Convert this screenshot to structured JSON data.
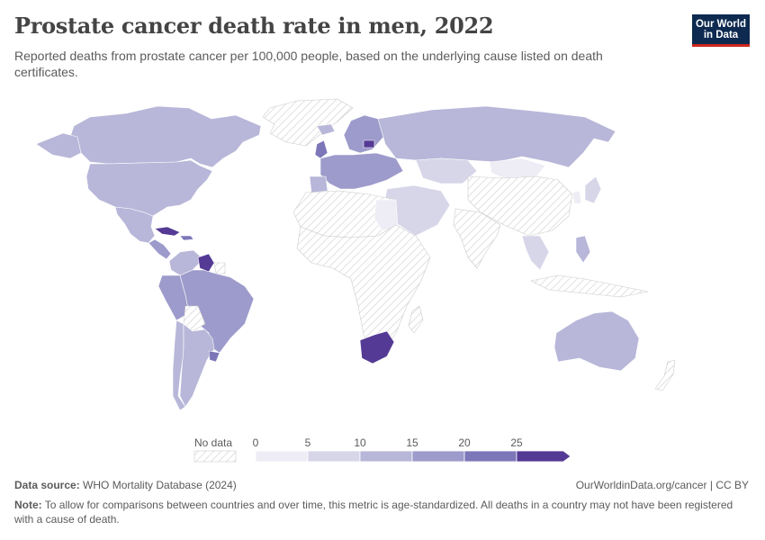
{
  "header": {
    "title": "Prostate cancer death rate in men, 2022",
    "subtitle": "Reported deaths from prostate cancer per 100,000 people, based on the underlying cause listed on death certificates."
  },
  "logo": {
    "line1": "Our World",
    "line2": "in Data"
  },
  "colors": {
    "no_data_stripe": "#d9d9d9",
    "bins": [
      "#eeedf5",
      "#d7d6e9",
      "#b8b7d9",
      "#9d9bcb",
      "#7d77b9",
      "#543a94"
    ],
    "border": "#ffffff"
  },
  "legend": {
    "no_data_label": "No data",
    "ticks": [
      "0",
      "5",
      "10",
      "15",
      "20",
      "25"
    ]
  },
  "map_data": {
    "metric": "Prostate cancer death rate per 100,000 (age-standardized)",
    "year": "2022",
    "regions": [
      {
        "name": "Canada",
        "bin": 2
      },
      {
        "name": "United States",
        "bin": 2
      },
      {
        "name": "Mexico",
        "bin": 2
      },
      {
        "name": "Cuba",
        "bin": 5
      },
      {
        "name": "Guyana",
        "bin": 5
      },
      {
        "name": "Brazil",
        "bin": 3
      },
      {
        "name": "Peru",
        "bin": 3
      },
      {
        "name": "Chile",
        "bin": 2
      },
      {
        "name": "Argentina",
        "bin": 2
      },
      {
        "name": "Uruguay",
        "bin": 4
      },
      {
        "name": "Greenland",
        "bin": "no-data"
      },
      {
        "name": "Russia",
        "bin": 2
      },
      {
        "name": "Europe",
        "bin": 3
      },
      {
        "name": "Latvia",
        "bin": 5
      },
      {
        "name": "Kazakhstan",
        "bin": 1
      },
      {
        "name": "China",
        "bin": "no-data"
      },
      {
        "name": "Japan",
        "bin": 1
      },
      {
        "name": "India",
        "bin": "no-data"
      },
      {
        "name": "Egypt",
        "bin": 0
      },
      {
        "name": "Africa",
        "bin": "no-data"
      },
      {
        "name": "South Africa",
        "bin": 5
      },
      {
        "name": "Australia",
        "bin": 2
      },
      {
        "name": "New Zealand",
        "bin": "no-data"
      },
      {
        "name": "Philippines",
        "bin": 2
      }
    ]
  },
  "footer": {
    "source_label": "Data source:",
    "source_text": "WHO Mortality Database (2024)",
    "url": "OurWorldinData.org/cancer | CC BY",
    "note_label": "Note:",
    "note_text": "To allow for comparisons between countries and over time, this metric is age-standardized. All deaths in a country may not have been registered with a cause of death."
  }
}
